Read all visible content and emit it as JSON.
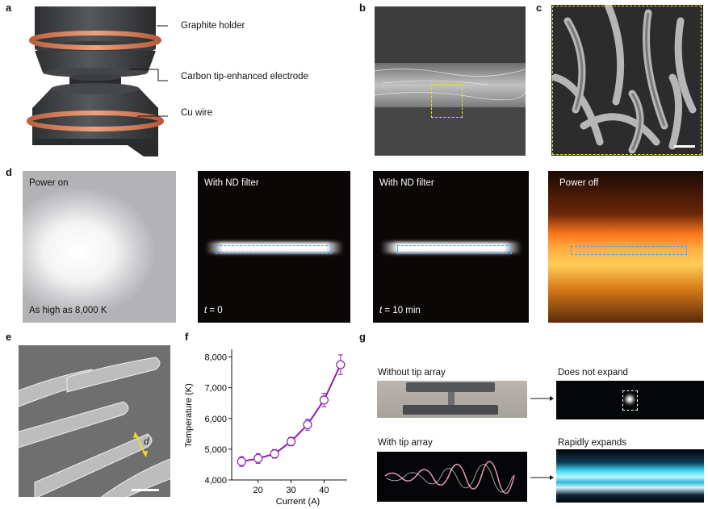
{
  "panel_labels": {
    "a": "a",
    "b": "b",
    "c": "c",
    "d": "d",
    "e": "e",
    "f": "f",
    "g": "g"
  },
  "panel_a": {
    "graphite_holder": "Graphite holder",
    "electrode": "Carbon tip-enhanced  electrode",
    "cu_wire": "Cu wire",
    "colors": {
      "graphite": "#3c3d40",
      "copper": "#d07a55"
    }
  },
  "panel_d": {
    "power_on": "Power on",
    "max_temp": "As high as 8,000 K",
    "nd_filter_1": "With ND filter",
    "nd_filter_2": "With ND filter",
    "t0_var": "t",
    "t0_val": " = 0",
    "t10_var": "t",
    "t10_val": " = 10 min",
    "power_off": "Power off",
    "colors": {
      "dash": "#4aa3ff",
      "glow": "#ff9a30"
    }
  },
  "panel_e": {
    "d_label": "d"
  },
  "panel_g": {
    "without": "Without tip array",
    "not_expand": "Does not expand",
    "with": "With tip array",
    "expands": "Rapidly expands",
    "colors": {
      "plasma": "#3fd6f0"
    }
  },
  "chart_data": {
    "type": "line",
    "x": [
      15,
      20,
      25,
      30,
      35,
      40,
      45
    ],
    "values": [
      4600,
      4700,
      4850,
      5250,
      5800,
      6600,
      7750
    ],
    "errors": [
      160,
      160,
      140,
      140,
      180,
      220,
      320
    ],
    "xlabel": "Current (A)",
    "ylabel": "Temperature (K)",
    "xticks": [
      "20",
      "30",
      "40"
    ],
    "xtick_values": [
      20,
      30,
      40
    ],
    "yticks": [
      "4,000",
      "5,000",
      "6,000",
      "7,000",
      "8,000"
    ],
    "ytick_values": [
      4000,
      5000,
      6000,
      7000,
      8000
    ],
    "xlim": [
      12,
      47
    ],
    "ylim": [
      4000,
      8250
    ],
    "line_color": "#8a1fb0",
    "grid": false
  }
}
